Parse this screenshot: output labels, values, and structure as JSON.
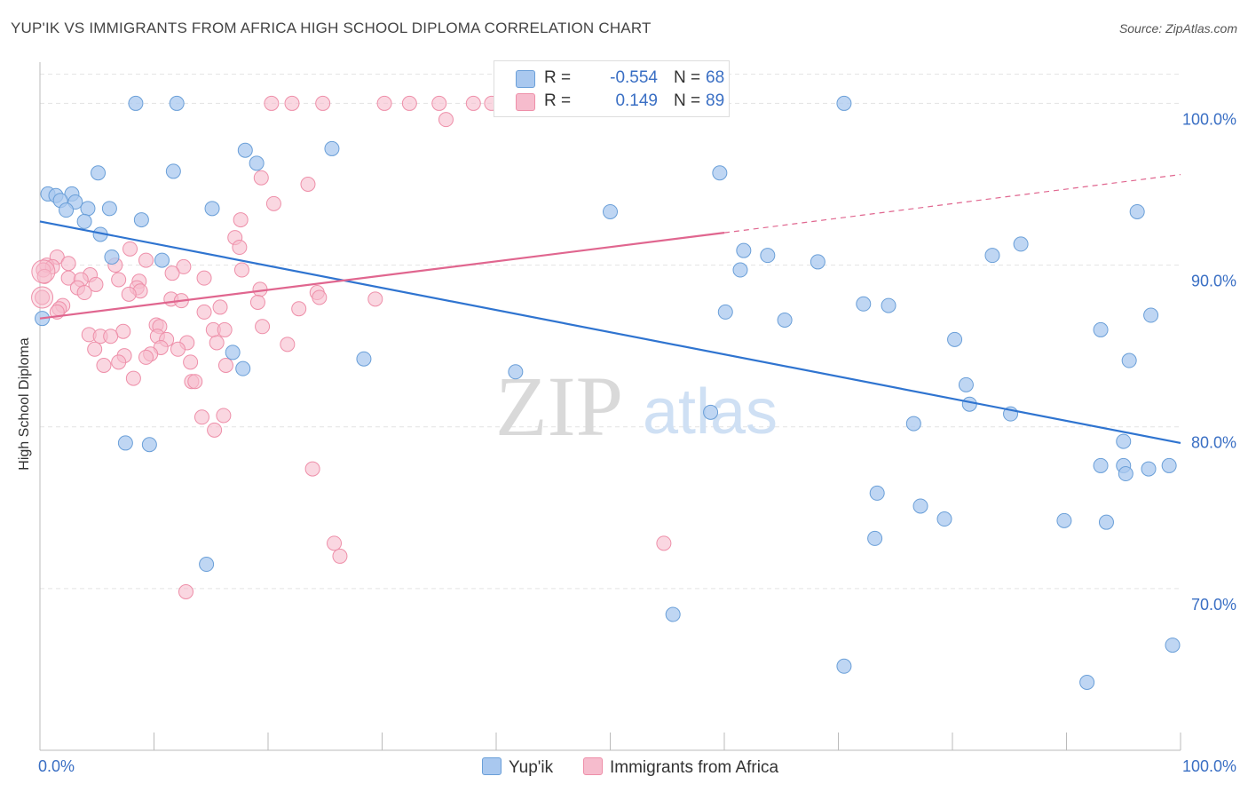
{
  "title": "YUP'IK VS IMMIGRANTS FROM AFRICA HIGH SCHOOL DIPLOMA CORRELATION CHART",
  "source": "Source: ZipAtlas.com",
  "watermark": {
    "zip": "ZIP",
    "atlas": "atlas"
  },
  "legend": {
    "rows": [
      {
        "r_label": "R =",
        "r_value": "-0.554",
        "n_label": "N =",
        "n_value": "68"
      },
      {
        "r_label": "R =",
        "r_value": "0.149",
        "n_label": "N =",
        "n_value": "89"
      }
    ]
  },
  "colors": {
    "blue_fill": "#a9c8ef",
    "blue_stroke": "#6a9fd8",
    "blue_line": "#2f74d0",
    "pink_fill": "#f6bccd",
    "pink_stroke": "#ee8fa9",
    "pink_line": "#e0668f",
    "axis_text": "#3a6fc4",
    "grid": "#e3e3e3"
  },
  "chart_data": {
    "type": "scatter",
    "title": "YUP'IK VS IMMIGRANTS FROM AFRICA HIGH SCHOOL DIPLOMA CORRELATION CHART",
    "xlabel": "",
    "ylabel": "High School Diploma",
    "xlim": [
      0,
      100
    ],
    "ylim": [
      60,
      102
    ],
    "x_tick_labels": [
      "0.0%",
      "100.0%"
    ],
    "y_ticks": [
      70,
      80,
      90,
      100
    ],
    "y_tick_labels": [
      "70.0%",
      "80.0%",
      "90.0%",
      "100.0%"
    ],
    "legend_position": "bottom",
    "series": [
      {
        "name": "Yup'ik",
        "r": -0.554,
        "n": 68,
        "trend": {
          "x": [
            0,
            100
          ],
          "y": [
            92.7,
            79.0
          ],
          "dashed_x": null
        },
        "points": [
          [
            8.4,
            100.0
          ],
          [
            12.0,
            100.0
          ],
          [
            70.5,
            100.0
          ],
          [
            18.0,
            97.1
          ],
          [
            25.6,
            97.2
          ],
          [
            19.0,
            96.3
          ],
          [
            5.1,
            95.7
          ],
          [
            11.7,
            95.8
          ],
          [
            59.6,
            95.7
          ],
          [
            0.7,
            94.4
          ],
          [
            1.4,
            94.3
          ],
          [
            2.8,
            94.4
          ],
          [
            1.8,
            94.0
          ],
          [
            3.1,
            93.9
          ],
          [
            4.2,
            93.5
          ],
          [
            6.1,
            93.5
          ],
          [
            2.3,
            93.4
          ],
          [
            15.1,
            93.5
          ],
          [
            50.0,
            93.3
          ],
          [
            96.2,
            93.3
          ],
          [
            3.9,
            92.7
          ],
          [
            8.9,
            92.8
          ],
          [
            5.3,
            91.9
          ],
          [
            86.0,
            91.3
          ],
          [
            83.5,
            90.6
          ],
          [
            61.7,
            90.9
          ],
          [
            63.8,
            90.6
          ],
          [
            6.3,
            90.5
          ],
          [
            10.7,
            90.3
          ],
          [
            68.2,
            90.2
          ],
          [
            61.4,
            89.7
          ],
          [
            72.2,
            87.6
          ],
          [
            74.4,
            87.5
          ],
          [
            60.1,
            87.1
          ],
          [
            65.3,
            86.6
          ],
          [
            97.4,
            86.9
          ],
          [
            93.0,
            86.0
          ],
          [
            0.2,
            86.7
          ],
          [
            80.2,
            85.4
          ],
          [
            16.9,
            84.6
          ],
          [
            28.4,
            84.2
          ],
          [
            95.5,
            84.1
          ],
          [
            17.8,
            83.6
          ],
          [
            41.7,
            83.4
          ],
          [
            81.2,
            82.6
          ],
          [
            81.5,
            81.4
          ],
          [
            58.8,
            80.9
          ],
          [
            85.1,
            80.8
          ],
          [
            76.6,
            80.2
          ],
          [
            95.0,
            79.1
          ],
          [
            7.5,
            79.0
          ],
          [
            9.6,
            78.9
          ],
          [
            93.0,
            77.6
          ],
          [
            95.0,
            77.6
          ],
          [
            95.2,
            77.1
          ],
          [
            97.2,
            77.4
          ],
          [
            99.0,
            77.6
          ],
          [
            73.4,
            75.9
          ],
          [
            77.2,
            75.1
          ],
          [
            79.3,
            74.3
          ],
          [
            89.8,
            74.2
          ],
          [
            93.5,
            74.1
          ],
          [
            73.2,
            73.1
          ],
          [
            14.6,
            71.5
          ],
          [
            55.5,
            68.4
          ],
          [
            70.5,
            65.2
          ],
          [
            99.3,
            66.5
          ],
          [
            91.8,
            64.2
          ]
        ]
      },
      {
        "name": "Immigrants from Africa",
        "r": 0.149,
        "n": 89,
        "trend": {
          "x": [
            0,
            60
          ],
          "y": [
            86.7,
            92.0
          ],
          "dashed_x": [
            60,
            100
          ],
          "dashed_y": [
            92.0,
            95.6
          ]
        },
        "points": [
          [
            20.3,
            100.0
          ],
          [
            22.1,
            100.0
          ],
          [
            24.8,
            100.0
          ],
          [
            30.2,
            100.0
          ],
          [
            32.4,
            100.0
          ],
          [
            35.0,
            100.0
          ],
          [
            38.0,
            100.0
          ],
          [
            39.6,
            100.0
          ],
          [
            41.2,
            100.0
          ],
          [
            35.6,
            99.0
          ],
          [
            19.4,
            95.4
          ],
          [
            23.5,
            95.0
          ],
          [
            20.5,
            93.8
          ],
          [
            17.6,
            92.8
          ],
          [
            17.1,
            91.7
          ],
          [
            17.5,
            91.1
          ],
          [
            7.9,
            91.0
          ],
          [
            1.5,
            90.5
          ],
          [
            0.6,
            90.0
          ],
          [
            1.1,
            89.9
          ],
          [
            2.5,
            90.1
          ],
          [
            0.3,
            89.7
          ],
          [
            0.4,
            89.3
          ],
          [
            6.6,
            90.0
          ],
          [
            9.3,
            90.3
          ],
          [
            12.6,
            89.9
          ],
          [
            17.7,
            89.7
          ],
          [
            11.6,
            89.5
          ],
          [
            14.4,
            89.2
          ],
          [
            4.4,
            89.4
          ],
          [
            2.5,
            89.2
          ],
          [
            3.6,
            89.1
          ],
          [
            6.9,
            89.1
          ],
          [
            8.7,
            89.0
          ],
          [
            4.9,
            88.8
          ],
          [
            3.3,
            88.6
          ],
          [
            8.5,
            88.6
          ],
          [
            3.9,
            88.3
          ],
          [
            19.3,
            88.5
          ],
          [
            8.8,
            88.4
          ],
          [
            24.3,
            88.3
          ],
          [
            24.5,
            88.0
          ],
          [
            29.4,
            87.9
          ],
          [
            11.5,
            87.9
          ],
          [
            12.4,
            87.8
          ],
          [
            7.8,
            88.2
          ],
          [
            2.0,
            87.5
          ],
          [
            1.7,
            87.3
          ],
          [
            19.1,
            87.7
          ],
          [
            15.8,
            87.4
          ],
          [
            14.4,
            87.1
          ],
          [
            22.7,
            87.3
          ],
          [
            0.2,
            88.0
          ],
          [
            1.5,
            87.1
          ],
          [
            10.2,
            86.3
          ],
          [
            10.5,
            86.2
          ],
          [
            15.2,
            86.0
          ],
          [
            16.2,
            86.0
          ],
          [
            19.5,
            86.2
          ],
          [
            7.3,
            85.9
          ],
          [
            10.3,
            85.6
          ],
          [
            4.3,
            85.7
          ],
          [
            5.3,
            85.6
          ],
          [
            6.2,
            85.6
          ],
          [
            11.1,
            85.4
          ],
          [
            12.9,
            85.2
          ],
          [
            15.5,
            85.2
          ],
          [
            21.7,
            85.1
          ],
          [
            10.6,
            84.9
          ],
          [
            12.1,
            84.8
          ],
          [
            4.8,
            84.8
          ],
          [
            9.7,
            84.5
          ],
          [
            7.4,
            84.4
          ],
          [
            9.3,
            84.3
          ],
          [
            13.2,
            84.0
          ],
          [
            6.9,
            84.0
          ],
          [
            5.6,
            83.8
          ],
          [
            16.3,
            83.8
          ],
          [
            8.2,
            83.0
          ],
          [
            13.3,
            82.8
          ],
          [
            13.6,
            82.8
          ],
          [
            16.1,
            80.7
          ],
          [
            14.2,
            80.6
          ],
          [
            15.3,
            79.8
          ],
          [
            23.9,
            77.4
          ],
          [
            25.8,
            72.8
          ],
          [
            26.3,
            72.0
          ],
          [
            54.7,
            72.8
          ],
          [
            12.8,
            69.8
          ]
        ]
      }
    ]
  },
  "bottom_legend": [
    {
      "label": "Yup'ik"
    },
    {
      "label": "Immigrants from Africa"
    }
  ]
}
